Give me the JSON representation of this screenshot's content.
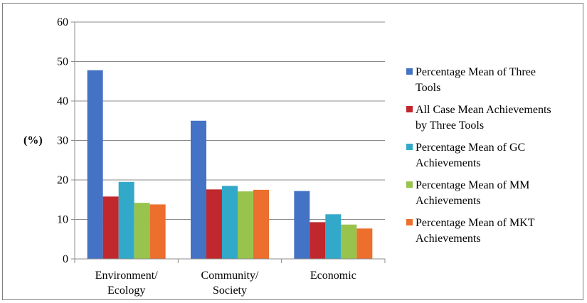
{
  "chart_data": {
    "type": "bar",
    "categories": [
      [
        "Environment/",
        "Ecology"
      ],
      [
        "Community/",
        "Society"
      ],
      [
        "Economic"
      ]
    ],
    "series": [
      {
        "name": "Percentage Mean of Three Tools",
        "color": "#4472c4",
        "values": [
          47.8,
          35.0,
          17.2
        ]
      },
      {
        "name": "All Case Mean Achievements by Three Tools",
        "color": "#c0282d",
        "values": [
          15.8,
          17.6,
          9.3
        ]
      },
      {
        "name": "Percentage Mean of GC Achievements",
        "color": "#33a9c9",
        "values": [
          19.5,
          18.5,
          11.3
        ]
      },
      {
        "name": "Percentage Mean of MM Achievements",
        "color": "#98c44e",
        "values": [
          14.2,
          17.1,
          8.7
        ]
      },
      {
        "name": "Percentage Mean of MKT Achievements",
        "color": "#ec6f2d",
        "values": [
          13.8,
          17.5,
          7.7
        ]
      }
    ],
    "legend_lines": [
      [
        "Percentage Mean of Three",
        "Tools"
      ],
      [
        "All Case Mean Achievements",
        "by Three Tools"
      ],
      [
        "Percentage Mean of GC",
        "Achievements"
      ],
      [
        "Percentage Mean of MM",
        "Achievements"
      ],
      [
        "Percentage Mean of MKT",
        "Achievements"
      ]
    ],
    "ylabel": "(%)",
    "ylim": [
      0,
      60
    ],
    "yticks": [
      0,
      10,
      20,
      30,
      40,
      50,
      60
    ],
    "grid": true,
    "legend_position": "right"
  }
}
